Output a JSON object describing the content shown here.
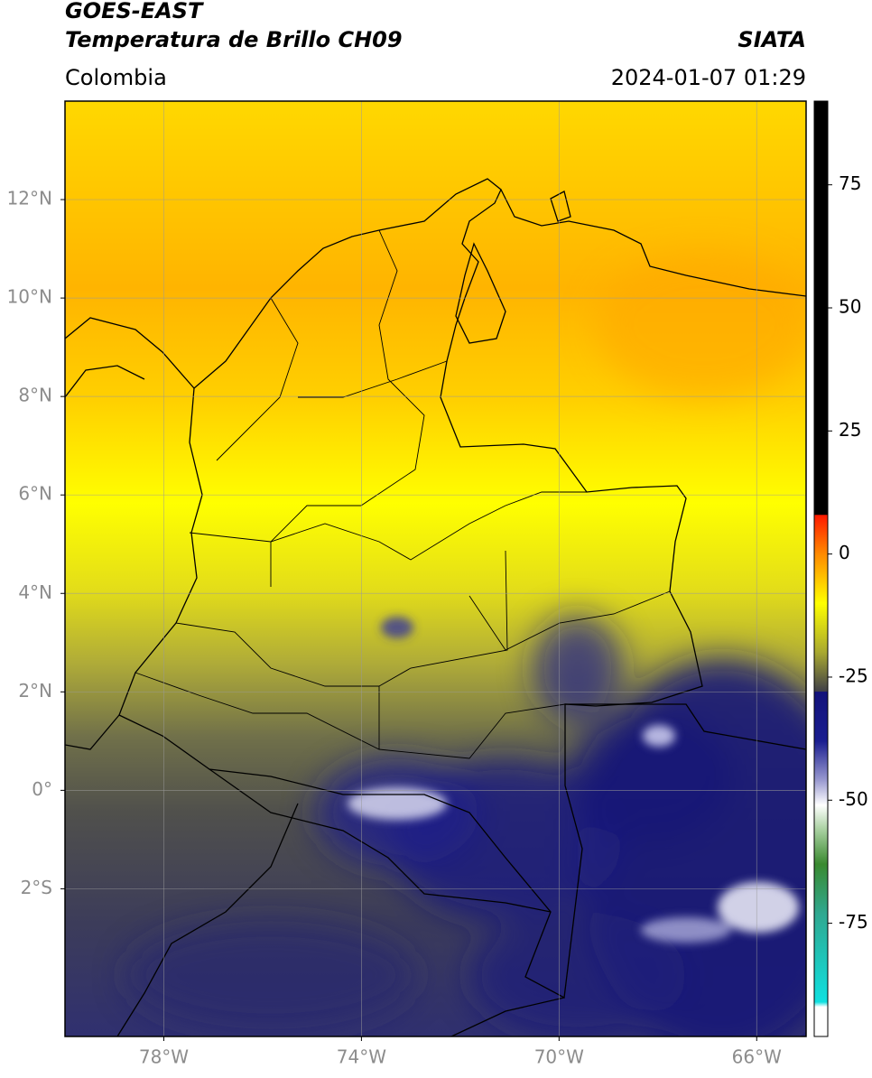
{
  "header": {
    "title": "GOES-EAST",
    "subtitle": "Temperatura de Brillo CH09",
    "source": "SIATA",
    "region": "Colombia",
    "datetime": "2024-01-07 01:29"
  },
  "map": {
    "lon_lim": [
      -80,
      -65
    ],
    "lat_lim": [
      -5,
      14
    ],
    "grid": true,
    "lon_ticks": [
      {
        "value": -78,
        "label": "78°W"
      },
      {
        "value": -74,
        "label": "74°W"
      },
      {
        "value": -70,
        "label": "70°W"
      },
      {
        "value": -66,
        "label": "66°W"
      }
    ],
    "lat_ticks": [
      {
        "value": 12,
        "label": "12°N"
      },
      {
        "value": 10,
        "label": "10°N"
      },
      {
        "value": 8,
        "label": "8°N"
      },
      {
        "value": 6,
        "label": "6°N"
      },
      {
        "value": 4,
        "label": "4°N"
      },
      {
        "value": 2,
        "label": "2°N"
      },
      {
        "value": 0,
        "label": "0°"
      },
      {
        "value": -2,
        "label": "2°S"
      }
    ]
  },
  "colorbar": {
    "lim": [
      -98,
      92
    ],
    "ticks": [
      75,
      50,
      25,
      0,
      -25,
      -50,
      -75
    ],
    "colormap": [
      {
        "value": 92,
        "color": "#000000"
      },
      {
        "value": 8,
        "color": "#000000"
      },
      {
        "value": 7.9,
        "color": "#ff1a00"
      },
      {
        "value": 0,
        "color": "#ff8a00"
      },
      {
        "value": -10,
        "color": "#ffff00"
      },
      {
        "value": -20,
        "color": "#a8a830"
      },
      {
        "value": -27.9,
        "color": "#404048"
      },
      {
        "value": -28,
        "color": "#12127a"
      },
      {
        "value": -38,
        "color": "#1a1e90"
      },
      {
        "value": -46,
        "color": "#9a9ad0"
      },
      {
        "value": -51,
        "color": "#ffffff"
      },
      {
        "value": -56,
        "color": "#a8d0a0"
      },
      {
        "value": -63,
        "color": "#3a8a30"
      },
      {
        "value": -73,
        "color": "#30a890"
      },
      {
        "value": -91,
        "color": "#10e0e0"
      },
      {
        "value": -92,
        "color": "#ffffff"
      },
      {
        "value": -98,
        "color": "#ffffff"
      }
    ]
  }
}
